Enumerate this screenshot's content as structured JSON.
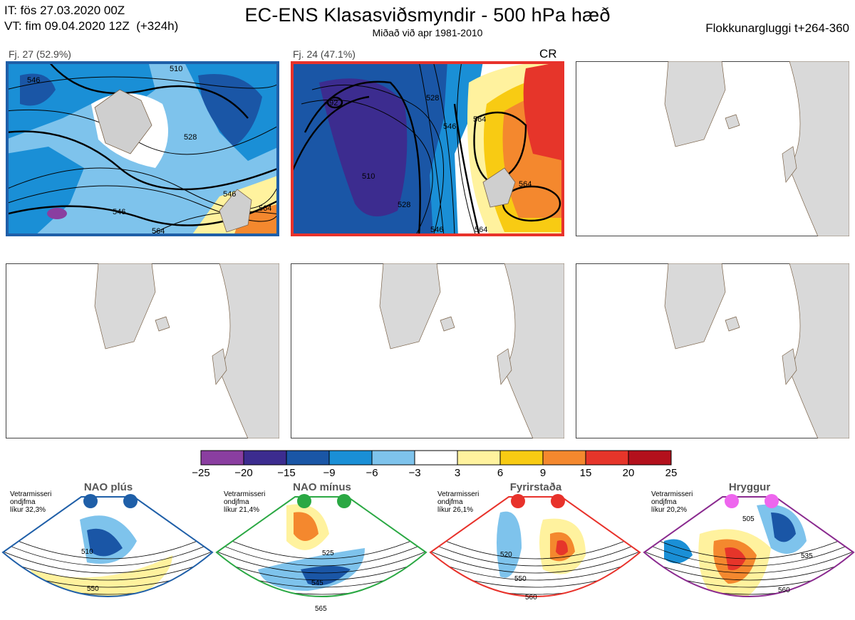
{
  "header": {
    "init_line": "IT: fös 27.03.2020 00Z",
    "valid_line": "VT: fim 09.04.2020 12Z  (+324h)",
    "title": "EC-ENS Klasasviðsmyndir - 500 hPa hæð",
    "subtitle": "Miðað við apr 1981-2010",
    "window": "Flokkunargluggi t+264-360"
  },
  "clusters": [
    {
      "label": "Fj. 27 (52.9%)",
      "border_color": "#1f5fa8",
      "extra": "",
      "contours": [
        "546",
        "528",
        "546",
        "546",
        "564",
        "564",
        "510"
      ]
    },
    {
      "label": "Fj. 24 (47.1%)",
      "border_color": "#e8322b",
      "extra": "CR",
      "contours": [
        "492",
        "510",
        "528",
        "546",
        "564",
        "564",
        "528",
        "546",
        "564"
      ]
    }
  ],
  "colorbar": {
    "colors": [
      "#8a3ea0",
      "#3c2c8f",
      "#1a56a6",
      "#1a8fd6",
      "#7ec3ec",
      "#ffffff",
      "#fff29e",
      "#f8cb13",
      "#f4882e",
      "#e6352a",
      "#b3101c"
    ],
    "ticks": [
      "−25",
      "−20",
      "−15",
      "−9",
      "−6",
      "−3",
      "3",
      "6",
      "9",
      "15",
      "20",
      "25"
    ]
  },
  "regimes": [
    {
      "title": "NAO plús",
      "note": [
        "Vetrarmisseri",
        "ondjfma",
        "líkur 32,3%"
      ],
      "color": "#1f5fa8",
      "dot": "#1f5fa8",
      "contours": [
        "510",
        "550"
      ]
    },
    {
      "title": "NAO mínus",
      "note": [
        "Vetrarmisseri",
        "ondjfma",
        "líkur 21,4%"
      ],
      "color": "#2aa843",
      "dot": "#2aa843",
      "contours": [
        "525",
        "545",
        "565"
      ]
    },
    {
      "title": "Fyrirstaða",
      "note": [
        "Vetrarmisseri",
        "ondjfma",
        "líkur 26,1%"
      ],
      "color": "#e8322b",
      "dot": "#e8322b",
      "contours": [
        "520",
        "550",
        "560"
      ]
    },
    {
      "title": "Hryggur",
      "note": [
        "Vetrarmisseri",
        "ondjfma",
        "líkur 20,2%"
      ],
      "color": "#8a2a8f",
      "dot": "#ee66ee",
      "contours": [
        "505",
        "535",
        "560"
      ]
    }
  ]
}
